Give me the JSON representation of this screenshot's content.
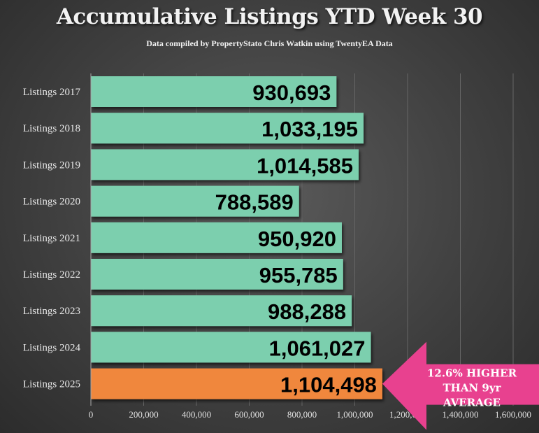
{
  "chart_data": {
    "type": "bar",
    "orientation": "horizontal",
    "title": "Accumulative Listings YTD Week 30",
    "subtitle": "Data compiled by PropertyStato Chris Watkin using TwentyEA Data",
    "categories": [
      "Listings 2017",
      "Listings 2018",
      "Listings 2019",
      "Listings 2020",
      "Listings 2021",
      "Listings 2022",
      "Listings 2023",
      "Listings 2024",
      "Listings 2025"
    ],
    "values": [
      930693,
      1033195,
      1014585,
      788589,
      950920,
      955785,
      988288,
      1061027,
      1104498
    ],
    "value_labels": [
      "930,693",
      "1,033,195",
      "1,014,585",
      "788,589",
      "950,920",
      "955,785",
      "988,288",
      "1,061,027",
      "1,104,498"
    ],
    "xlim": [
      0,
      1600000
    ],
    "x_ticks": [
      0,
      200000,
      400000,
      600000,
      800000,
      1000000,
      1200000,
      1400000,
      1600000
    ],
    "x_tick_labels": [
      "0",
      "200,000",
      "400,000",
      "600,000",
      "800,000",
      "1,000,000",
      "1,200,000",
      "1,400,000",
      "1,600,000"
    ],
    "grid": true,
    "colors": {
      "default": "#7ccfae",
      "highlight": "#f0873c",
      "annotation": "#e8418f"
    },
    "highlight_index": 8,
    "annotation": {
      "lines": [
        "12.6% HIGHER",
        "THAN 9yr",
        "AVERAGE"
      ]
    }
  }
}
